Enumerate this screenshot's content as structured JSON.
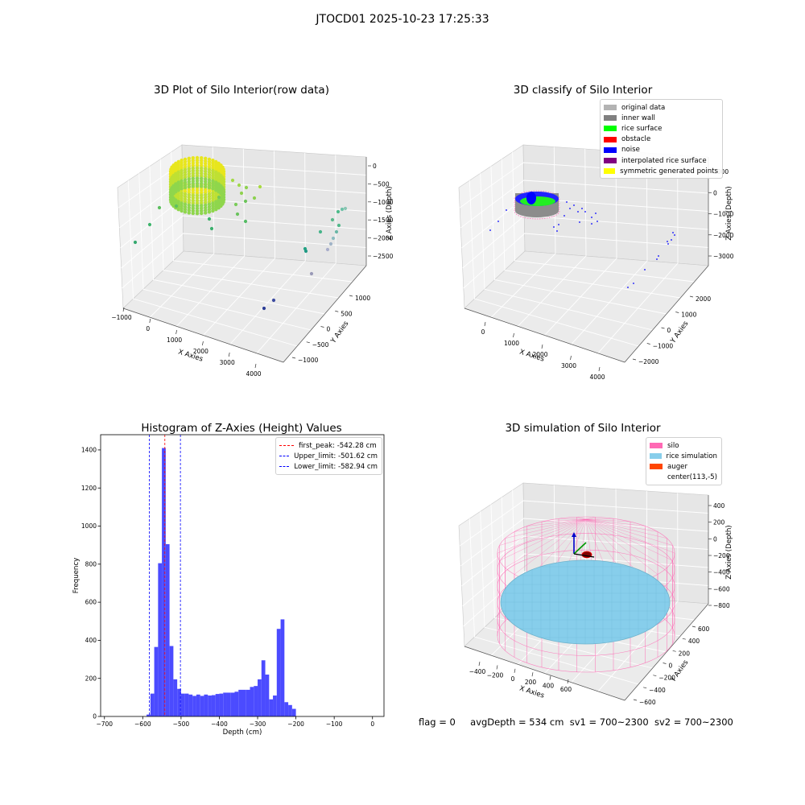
{
  "suptitle": "JTOCD01 2025-10-23 17:25:33",
  "panels": {
    "raw": {
      "title": "3D Plot of Silo Interior(row data)",
      "xlabel": "X Axies",
      "ylabel": "Y Axies",
      "zlabel": "Z Axies (Depth)",
      "xticks": [
        "−1000",
        "0",
        "1000",
        "2000",
        "3000",
        "4000"
      ],
      "yticks": [
        "1000",
        "500",
        "0",
        "−500",
        "−1000"
      ],
      "zticks": [
        "0",
        "−500",
        "−1000",
        "−1500",
        "−2000",
        "−2500"
      ]
    },
    "classify": {
      "title": "3D classify of Silo Interior",
      "xlabel": "X Axies",
      "ylabel": "Y Axies",
      "zlabel": "Z Axies (Depth)",
      "xticks": [
        "0",
        "1000",
        "2000",
        "3000",
        "4000"
      ],
      "yticks": [
        "2000",
        "1000",
        "0",
        "−1000",
        "−2000"
      ],
      "zticks": [
        "1000",
        "0",
        "−1000",
        "−2000",
        "−3000"
      ],
      "legend": [
        {
          "label": "original data",
          "color": "#b3b3b3"
        },
        {
          "label": "inner wall",
          "color": "#808080"
        },
        {
          "label": "rice surface",
          "color": "#00ff00"
        },
        {
          "label": "obstacle",
          "color": "#ff0000"
        },
        {
          "label": "noise",
          "color": "#0000ff"
        },
        {
          "label": "interpolated rice surface",
          "color": "#800080"
        },
        {
          "label": "symmetric generated points",
          "color": "#ffff00"
        }
      ]
    },
    "simulation": {
      "title": "3D simulation of Silo Interior",
      "xlabel": "X Axies",
      "ylabel": "Y Axies",
      "zlabel": "Z Axies (Depth)",
      "xticks": [
        "−400",
        "−200",
        "0",
        "200",
        "400",
        "600"
      ],
      "yticks": [
        "600",
        "400",
        "200",
        "0",
        "−200",
        "−400",
        "−600"
      ],
      "zticks": [
        "400",
        "200",
        "0",
        "−200",
        "−400",
        "−600",
        "−800"
      ],
      "legend": [
        {
          "label": "silo",
          "color": "#ff69b4"
        },
        {
          "label": "rice simulation",
          "color": "#87ceeb"
        },
        {
          "label": "auger",
          "color": "#ff4500"
        },
        {
          "label": "center(113,-5)",
          "color": ""
        }
      ]
    }
  },
  "chart_data": [
    {
      "type": "scatter",
      "title": "3D Plot of Silo Interior(row data)",
      "xlabel": "X Axies",
      "ylabel": "Y Axies",
      "zlabel": "Z Axies (Depth)",
      "xlim": [
        -1200,
        4500
      ],
      "ylim": [
        -1100,
        1300
      ],
      "zlim": [
        -2800,
        200
      ]
    },
    {
      "type": "scatter",
      "title": "3D classify of Silo Interior",
      "xlabel": "X Axies",
      "ylabel": "Y Axies",
      "zlabel": "Z Axies (Depth)",
      "xlim": [
        -500,
        4500
      ],
      "ylim": [
        -2300,
        2300
      ],
      "zlim": [
        -3500,
        1200
      ]
    },
    {
      "type": "bar",
      "title": "Histogram of Z-Axies (Height) Values",
      "xlabel": "Depth (cm)",
      "ylabel": "Frequency",
      "xlim": [
        -710,
        30
      ],
      "ylim": [
        0,
        1480
      ],
      "xticks": [
        -700,
        -600,
        -500,
        -400,
        -300,
        -200,
        -100,
        0
      ],
      "yticks": [
        0,
        200,
        400,
        600,
        800,
        1000,
        1200,
        1400
      ],
      "bin_start": -590,
      "bin_width": 10,
      "values": [
        10,
        120,
        365,
        805,
        1410,
        905,
        370,
        195,
        145,
        120,
        120,
        115,
        108,
        115,
        108,
        115,
        110,
        112,
        118,
        120,
        125,
        125,
        125,
        130,
        140,
        140,
        140,
        155,
        160,
        195,
        295,
        220,
        90,
        110,
        460,
        510,
        75,
        60,
        40
      ],
      "lines": [
        {
          "label": "first_peak: -542.28 cm",
          "x": -542.28,
          "color": "#ff0000"
        },
        {
          "label": "Upper_limit: -501.62 cm",
          "x": -501.62,
          "color": "#0000ff"
        },
        {
          "label": "Lower_limit: -582.94 cm",
          "x": -582.94,
          "color": "#0000ff"
        }
      ],
      "bar_color": "#4b4bff"
    },
    {
      "type": "scatter",
      "title": "3D simulation of Silo Interior",
      "xlabel": "X Axies",
      "ylabel": "Y Axies",
      "zlabel": "Z Axies (Depth)",
      "xlim": [
        -500,
        700
      ],
      "ylim": [
        -650,
        650
      ],
      "zlim": [
        -900,
        450
      ]
    }
  ],
  "footer": {
    "flag": "flag = 0",
    "avg": "avgDepth = 534 cm",
    "sv1": "sv1 = 700~2300",
    "sv2": "sv2 = 700~2300"
  }
}
